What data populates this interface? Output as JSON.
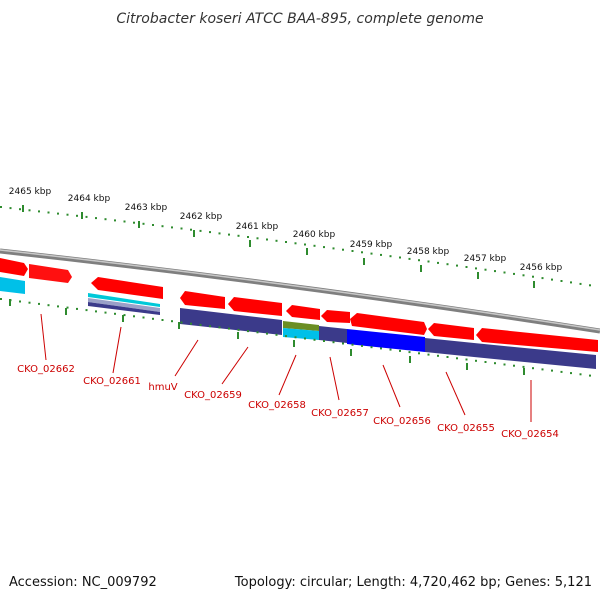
{
  "title": "Citrobacter koseri ATCC BAA-895, complete genome",
  "footer": {
    "accession": "Accession: NC_009792",
    "topology": "Topology: circular; Length: 4,720,462 bp; Genes: 5,121"
  },
  "colors": {
    "gene_forward": "#ff0000",
    "gene_reverse_bar": "#3b3a8a",
    "gene_blue": "#0000ff",
    "gene_cyan": "#00c0e8",
    "gene_olive": "#6b8e23",
    "label": "#cc0000",
    "tick": "#2e8b2e",
    "backbone": "#808080"
  },
  "scale_labels": [
    "2465 kbp",
    "2464 kbp",
    "2463 kbp",
    "2462 kbp",
    "2461 kbp",
    "2460 kbp",
    "2459 kbp",
    "2458 kbp",
    "2457 kbp",
    "2456 kbp"
  ],
  "gene_labels": [
    "CKO_02662",
    "CKO_02661",
    "hmuV",
    "CKO_02659",
    "CKO_02658",
    "CKO_02657",
    "CKO_02656",
    "CKO_02655",
    "CKO_02654"
  ]
}
